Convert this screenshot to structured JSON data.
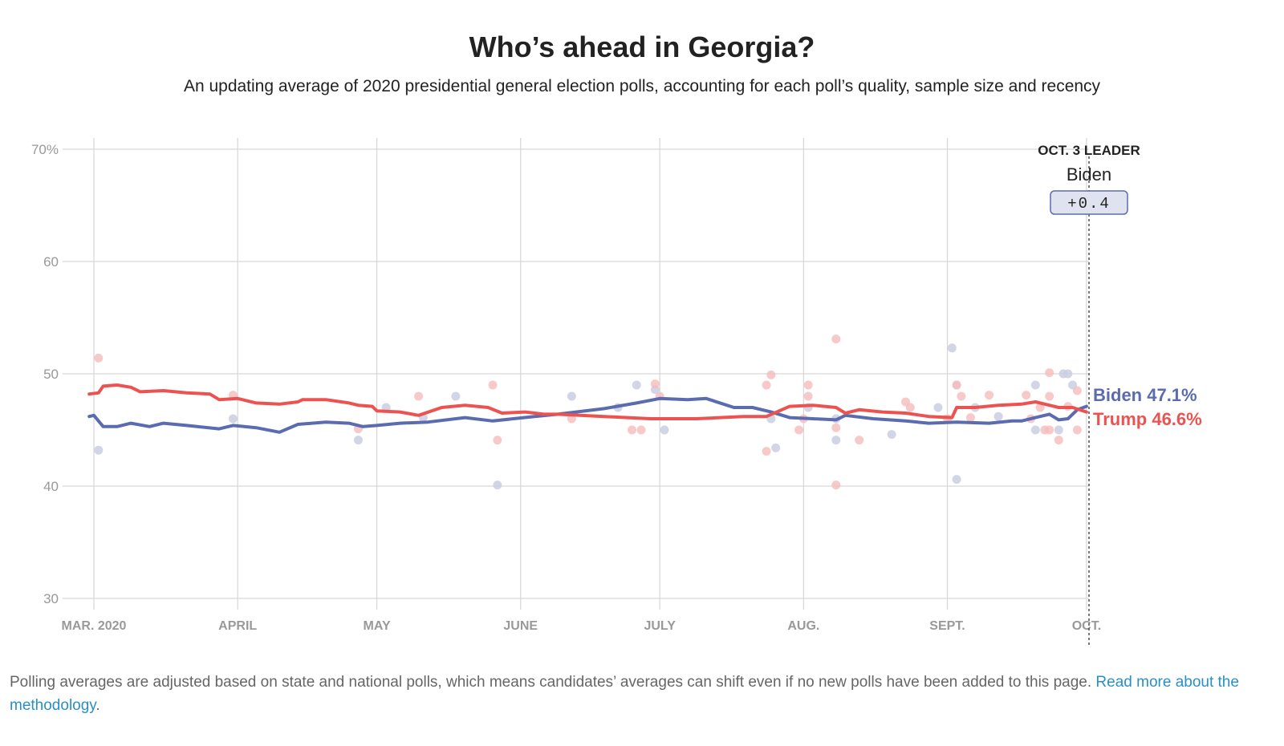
{
  "header": {
    "title": "Who’s ahead in Georgia?",
    "subtitle": "An updating average of 2020 presidential general election polls, accounting for each poll’s quality, sample size and recency"
  },
  "footer": {
    "text": "Polling averages are adjusted based on state and national polls, which means candidates’ averages can shift even if no new polls have been added to this page.",
    "link_text": "Read more about the methodology",
    "period": "."
  },
  "chart_data": {
    "type": "line",
    "title": "Who’s ahead in Georgia?",
    "ylim": [
      30,
      70
    ],
    "y_ticks": [
      "70%",
      "60",
      "50",
      "40",
      "30"
    ],
    "x_ticks": [
      "MAR. 2020",
      "APRIL",
      "MAY",
      "JUNE",
      "JULY",
      "AUG.",
      "SEPT.",
      "OCT."
    ],
    "grid": true,
    "leader_box": {
      "label": "OCT. 3 LEADER",
      "name": "Biden",
      "margin": "+0.4"
    },
    "end_labels": [
      {
        "text": "Biden 47.1%",
        "series": "Biden"
      },
      {
        "text": "Trump 46.6%",
        "series": "Trump"
      }
    ],
    "colors": {
      "Biden": "#5b6bb0",
      "Trump": "#ec5350",
      "Biden_dot": "#c9cee0",
      "Trump_dot": "#f6bcbb",
      "grid": "#d6d6d6"
    },
    "series": [
      {
        "name": "Biden",
        "points": [
          [
            -1,
            46.2
          ],
          [
            0,
            46.3
          ],
          [
            2,
            45.3
          ],
          [
            5,
            45.3
          ],
          [
            8,
            45.6
          ],
          [
            12,
            45.3
          ],
          [
            15,
            45.6
          ],
          [
            20,
            45.4
          ],
          [
            27,
            45.1
          ],
          [
            30,
            45.4
          ],
          [
            35,
            45.2
          ],
          [
            40,
            44.8
          ],
          [
            44,
            45.5
          ],
          [
            50,
            45.7
          ],
          [
            55,
            45.6
          ],
          [
            58,
            45.3
          ],
          [
            61,
            45.4
          ],
          [
            66,
            45.6
          ],
          [
            72,
            45.7
          ],
          [
            80,
            46.1
          ],
          [
            86,
            45.8
          ],
          [
            95,
            46.2
          ],
          [
            100,
            46.4
          ],
          [
            110,
            46.9
          ],
          [
            117,
            47.4
          ],
          [
            122,
            47.8
          ],
          [
            128,
            47.7
          ],
          [
            132,
            47.8
          ],
          [
            138,
            47.0
          ],
          [
            142,
            47.0
          ],
          [
            146,
            46.6
          ],
          [
            150,
            46.1
          ],
          [
            155,
            46.0
          ],
          [
            160,
            45.9
          ],
          [
            162,
            46.3
          ],
          [
            168,
            46.0
          ],
          [
            175,
            45.8
          ],
          [
            180,
            45.6
          ],
          [
            186,
            45.7
          ],
          [
            193,
            45.6
          ],
          [
            198,
            45.8
          ],
          [
            200,
            45.8
          ],
          [
            203,
            46.1
          ],
          [
            206,
            46.4
          ],
          [
            208,
            45.9
          ],
          [
            210,
            46.0
          ],
          [
            212,
            46.8
          ],
          [
            214,
            47.1
          ]
        ]
      },
      {
        "name": "Trump",
        "points": [
          [
            -1,
            48.2
          ],
          [
            1,
            48.3
          ],
          [
            2,
            48.9
          ],
          [
            5,
            49.0
          ],
          [
            8,
            48.8
          ],
          [
            10,
            48.4
          ],
          [
            15,
            48.5
          ],
          [
            20,
            48.3
          ],
          [
            25,
            48.2
          ],
          [
            27,
            47.7
          ],
          [
            31,
            47.8
          ],
          [
            35,
            47.4
          ],
          [
            40,
            47.3
          ],
          [
            44,
            47.5
          ],
          [
            45,
            47.7
          ],
          [
            50,
            47.7
          ],
          [
            55,
            47.4
          ],
          [
            57,
            47.2
          ],
          [
            60,
            47.1
          ],
          [
            61,
            46.7
          ],
          [
            66,
            46.6
          ],
          [
            70,
            46.3
          ],
          [
            75,
            47.0
          ],
          [
            80,
            47.2
          ],
          [
            85,
            47.0
          ],
          [
            88,
            46.5
          ],
          [
            93,
            46.6
          ],
          [
            97,
            46.4
          ],
          [
            100,
            46.4
          ],
          [
            110,
            46.2
          ],
          [
            115,
            46.1
          ],
          [
            120,
            46.0
          ],
          [
            130,
            46.0
          ],
          [
            135,
            46.1
          ],
          [
            140,
            46.2
          ],
          [
            145,
            46.2
          ],
          [
            150,
            47.1
          ],
          [
            155,
            47.2
          ],
          [
            160,
            47.0
          ],
          [
            162,
            46.5
          ],
          [
            165,
            46.8
          ],
          [
            170,
            46.6
          ],
          [
            175,
            46.5
          ],
          [
            180,
            46.2
          ],
          [
            185,
            46.1
          ],
          [
            186,
            47.0
          ],
          [
            190,
            47.0
          ],
          [
            195,
            47.2
          ],
          [
            200,
            47.3
          ],
          [
            203,
            47.5
          ],
          [
            206,
            47.2
          ],
          [
            208,
            47.0
          ],
          [
            211,
            47.0
          ],
          [
            214,
            46.6
          ]
        ]
      }
    ],
    "polls": {
      "Biden": [
        [
          1,
          43.2
        ],
        [
          30,
          46.0
        ],
        [
          57,
          44.1
        ],
        [
          63,
          47.0
        ],
        [
          71,
          46.1
        ],
        [
          78,
          48.0
        ],
        [
          87,
          40.1
        ],
        [
          103,
          48.0
        ],
        [
          113,
          47.0
        ],
        [
          117,
          49.0
        ],
        [
          121,
          48.6
        ],
        [
          123,
          45.0
        ],
        [
          146,
          46.0
        ],
        [
          147,
          43.4
        ],
        [
          154,
          47.0
        ],
        [
          160,
          46.0
        ],
        [
          160,
          44.1
        ],
        [
          172,
          44.6
        ],
        [
          182,
          47.0
        ],
        [
          185,
          52.3
        ],
        [
          186,
          49.0
        ],
        [
          186,
          40.6
        ],
        [
          190,
          47.0
        ],
        [
          195,
          46.2
        ],
        [
          203,
          49.0
        ],
        [
          203,
          45.0
        ],
        [
          208,
          45.0
        ],
        [
          209,
          50.0
        ],
        [
          210,
          50.0
        ],
        [
          211,
          49.0
        ]
      ],
      "Trump": [
        [
          1,
          51.4
        ],
        [
          30,
          48.1
        ],
        [
          57,
          45.1
        ],
        [
          70,
          48.0
        ],
        [
          86,
          49.0
        ],
        [
          87,
          44.1
        ],
        [
          103,
          46.0
        ],
        [
          116,
          45.0
        ],
        [
          118,
          45.0
        ],
        [
          121,
          49.1
        ],
        [
          122,
          48.0
        ],
        [
          145,
          43.1
        ],
        [
          145,
          49.0
        ],
        [
          146,
          49.9
        ],
        [
          152,
          45.0
        ],
        [
          153,
          46.0
        ],
        [
          154,
          49.0
        ],
        [
          154,
          48.0
        ],
        [
          160,
          53.1
        ],
        [
          160,
          40.1
        ],
        [
          160,
          45.2
        ],
        [
          165,
          44.1
        ],
        [
          175,
          47.5
        ],
        [
          176,
          47.0
        ],
        [
          184,
          46.0
        ],
        [
          186,
          49.0
        ],
        [
          187,
          48.0
        ],
        [
          189,
          46.1
        ],
        [
          193,
          48.1
        ],
        [
          201,
          48.1
        ],
        [
          202,
          46.0
        ],
        [
          204,
          47.0
        ],
        [
          205,
          45.0
        ],
        [
          206,
          45.0
        ],
        [
          206,
          50.1
        ],
        [
          206,
          48.0
        ],
        [
          208,
          44.1
        ],
        [
          210,
          47.1
        ],
        [
          212,
          48.5
        ],
        [
          212,
          45.0
        ]
      ]
    }
  }
}
